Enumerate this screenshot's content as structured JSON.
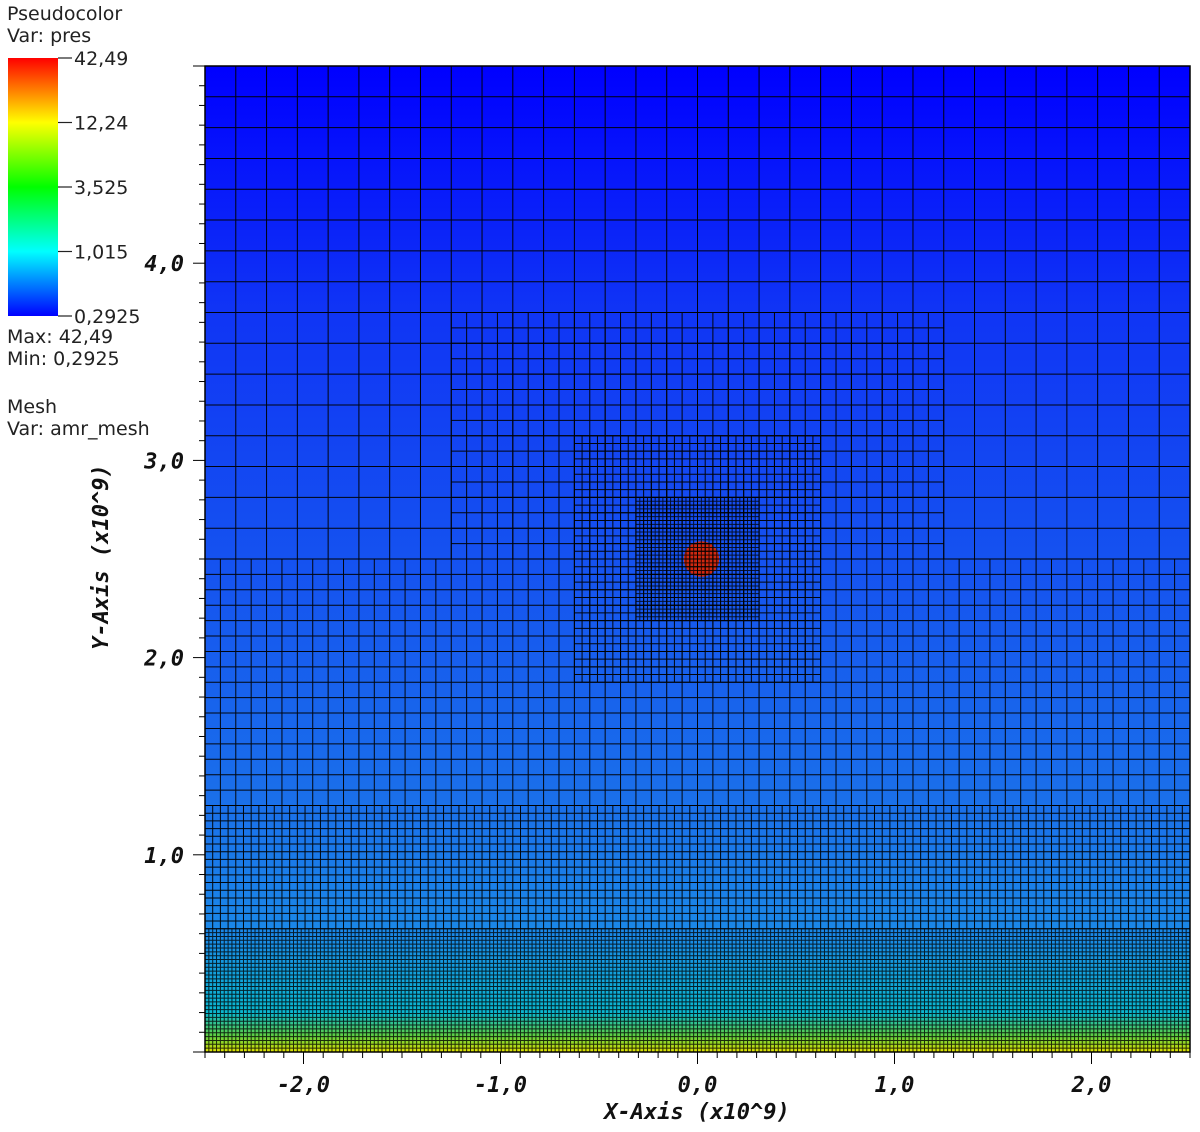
{
  "legend": {
    "plot_type": "Pseudocolor",
    "var_label": "Var: pres",
    "max_label": "Max:  42,49",
    "min_label": "Min:  0,2925",
    "mesh_type": "Mesh",
    "mesh_var_label": "Var: amr_mesh",
    "colorbar_ticks": [
      "42,49",
      "12,24",
      "3,525",
      "1,015",
      "0,2925"
    ],
    "colorbar_colors": [
      "#ff0000",
      "#ffff00",
      "#00ff00",
      "#00ffff",
      "#0000ff"
    ]
  },
  "chart_data": {
    "type": "heatmap",
    "xlabel": "X-Axis  (x10^9)",
    "ylabel": "Y-Axis  (x10^9)",
    "xlim": [
      -2.5,
      2.5
    ],
    "ylim": [
      0,
      5
    ],
    "x_ticks": [
      {
        "value": -2.0,
        "label": "-2,0"
      },
      {
        "value": -1.0,
        "label": "-1,0"
      },
      {
        "value": 0.0,
        "label": "0,0"
      },
      {
        "value": 1.0,
        "label": "1,0"
      },
      {
        "value": 2.0,
        "label": "2,0"
      }
    ],
    "y_ticks": [
      {
        "value": 1.0,
        "label": "1,0"
      },
      {
        "value": 2.0,
        "label": "2,0"
      },
      {
        "value": 3.0,
        "label": "3,0"
      },
      {
        "value": 4.0,
        "label": "4,0"
      }
    ],
    "variable": "pres",
    "value_range": [
      0.2925,
      42.49
    ],
    "scale": "log",
    "background_gradient": [
      {
        "y": 0.0,
        "color": "#e0e000"
      },
      {
        "y": 0.08,
        "color": "#60d040"
      },
      {
        "y": 0.2,
        "color": "#0ab8d0"
      },
      {
        "y": 0.6,
        "color": "#1a88e8"
      },
      {
        "y": 1.25,
        "color": "#1a70ea"
      },
      {
        "y": 2.5,
        "color": "#1552f0"
      },
      {
        "y": 3.75,
        "color": "#1035f5"
      },
      {
        "y": 5.0,
        "color": "#0000ff"
      }
    ],
    "hot_spot": {
      "x": 0.02,
      "y": 2.5,
      "radius": 0.09,
      "color": "#d02810"
    },
    "mesh_patches": [
      {
        "x0": -2.5,
        "x1": 2.5,
        "y0": 2.5,
        "y1": 5.0,
        "cell": 0.15625
      },
      {
        "x0": -2.5,
        "x1": 2.5,
        "y0": 1.25,
        "y1": 2.5,
        "cell": 0.078125
      },
      {
        "x0": -2.5,
        "x1": 2.5,
        "y0": 0.625,
        "y1": 1.25,
        "cell": 0.0390625
      },
      {
        "x0": -2.5,
        "x1": 2.5,
        "y0": 0.0,
        "y1": 0.625,
        "cell": 0.01953125
      },
      {
        "x0": -1.25,
        "x1": 1.25,
        "y0": 2.5,
        "y1": 3.75,
        "cell": 0.078125
      },
      {
        "x0": -0.625,
        "x1": 0.625,
        "y0": 1.875,
        "y1": 3.125,
        "cell": 0.0390625
      },
      {
        "x0": -0.3125,
        "x1": 0.3125,
        "y0": 2.1875,
        "y1": 2.8125,
        "cell": 0.01953125
      }
    ]
  }
}
